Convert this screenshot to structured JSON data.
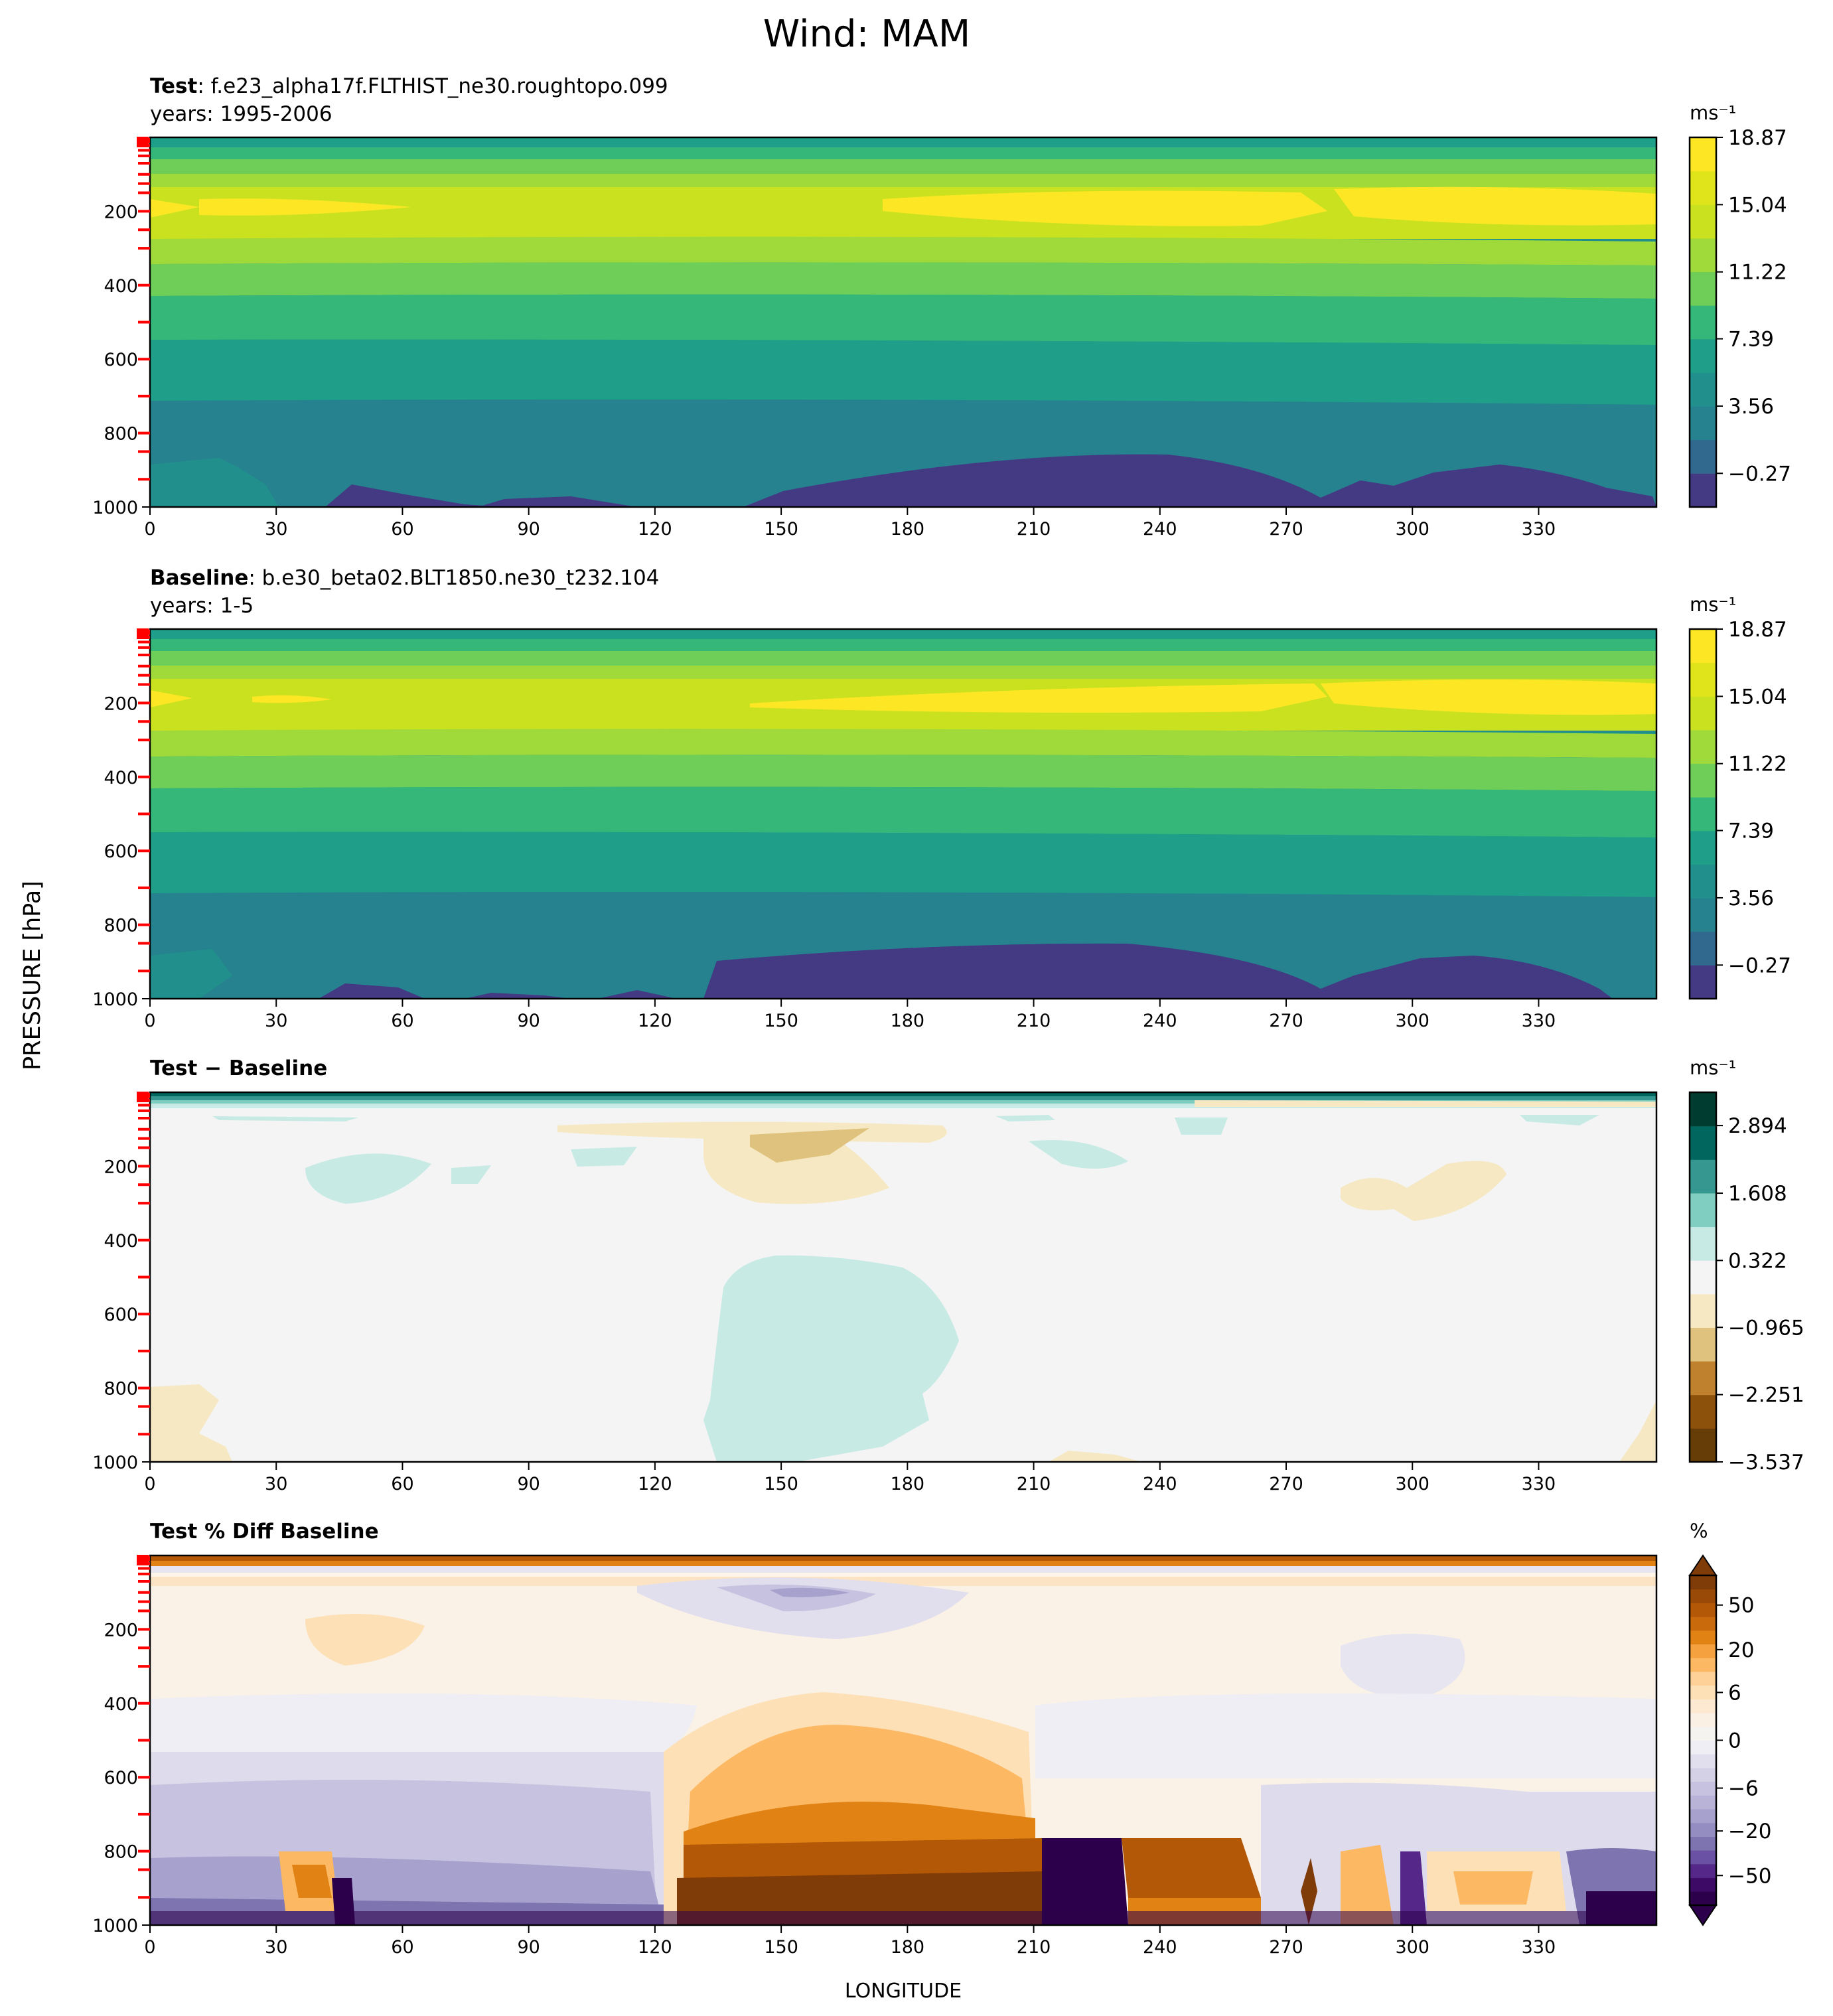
{
  "chart_data": {
    "suptitle": "Wind: MAM",
    "ylabel": "PRESSURE [hPa]",
    "xlabel": "LONGITUDE",
    "panels": [
      {
        "type": "heatmap",
        "title_bold": "Test",
        "title_rest": ": f.e23_alpha17f.FLTHIST_ne30.roughtopo.099",
        "subtitle": "years: 1995-2006",
        "units": "ms⁻¹",
        "xlim": [
          0,
          358
        ],
        "ylim": [
          1000,
          0
        ],
        "xticks": [
          "0",
          "30",
          "60",
          "90",
          "120",
          "150",
          "180",
          "210",
          "240",
          "270",
          "300",
          "330"
        ],
        "yticks": [
          "200",
          "400",
          "600",
          "800",
          "1000"
        ],
        "colorbar_ticks": [
          "18.87",
          "15.04",
          "11.22",
          "7.39",
          "3.56",
          "−0.27"
        ],
        "colormap": "viridis",
        "levels": [
          -2.18,
          -0.27,
          1.64,
          3.56,
          5.47,
          7.39,
          9.3,
          11.22,
          13.13,
          15.04,
          16.96,
          18.87
        ]
      },
      {
        "type": "heatmap",
        "title_bold": "Baseline",
        "title_rest": ": b.e30_beta02.BLT1850.ne30_t232.104",
        "subtitle": "years: 1-5",
        "units": "ms⁻¹",
        "xlim": [
          0,
          358
        ],
        "ylim": [
          1000,
          0
        ],
        "xticks": [
          "0",
          "30",
          "60",
          "90",
          "120",
          "150",
          "180",
          "210",
          "240",
          "270",
          "300",
          "330"
        ],
        "yticks": [
          "200",
          "400",
          "600",
          "800",
          "1000"
        ],
        "colorbar_ticks": [
          "18.87",
          "15.04",
          "11.22",
          "7.39",
          "3.56",
          "−0.27"
        ],
        "colormap": "viridis",
        "levels": [
          -2.18,
          -0.27,
          1.64,
          3.56,
          5.47,
          7.39,
          9.3,
          11.22,
          13.13,
          15.04,
          16.96,
          18.87
        ]
      },
      {
        "type": "heatmap",
        "title_bold": "Test − Baseline",
        "title_rest": "",
        "subtitle": "",
        "units": "ms⁻¹",
        "xlim": [
          0,
          358
        ],
        "ylim": [
          1000,
          0
        ],
        "xticks": [
          "0",
          "30",
          "60",
          "90",
          "120",
          "150",
          "180",
          "210",
          "240",
          "270",
          "300",
          "330"
        ],
        "yticks": [
          "200",
          "400",
          "600",
          "800",
          "1000"
        ],
        "colorbar_ticks": [
          "2.894",
          "1.608",
          "0.322",
          "−0.965",
          "−2.251",
          "−3.537"
        ],
        "colormap": "BrBG",
        "levels": [
          -3.537,
          -2.894,
          -2.251,
          -1.608,
          -0.965,
          -0.322,
          0.322,
          0.965,
          1.608,
          2.251,
          2.894,
          3.537
        ]
      },
      {
        "type": "heatmap",
        "title_bold": "Test % Diff Baseline",
        "title_rest": "",
        "subtitle": "",
        "units": "%",
        "xlim": [
          0,
          358
        ],
        "ylim": [
          1000,
          0
        ],
        "xticks": [
          "0",
          "30",
          "60",
          "90",
          "120",
          "150",
          "180",
          "210",
          "240",
          "270",
          "300",
          "330"
        ],
        "yticks": [
          "200",
          "400",
          "600",
          "800",
          "1000"
        ],
        "colorbar_ticks": [
          "50",
          "20",
          "6",
          "0",
          "−6",
          "−20",
          "−50"
        ],
        "colormap": "PuOr_r",
        "levels": [
          -100,
          -70,
          -50,
          -40,
          -30,
          -20,
          -15,
          -10,
          -8,
          -6,
          -4,
          -2,
          0,
          2,
          4,
          6,
          8,
          10,
          15,
          20,
          30,
          40,
          50,
          70,
          100
        ]
      }
    ]
  }
}
